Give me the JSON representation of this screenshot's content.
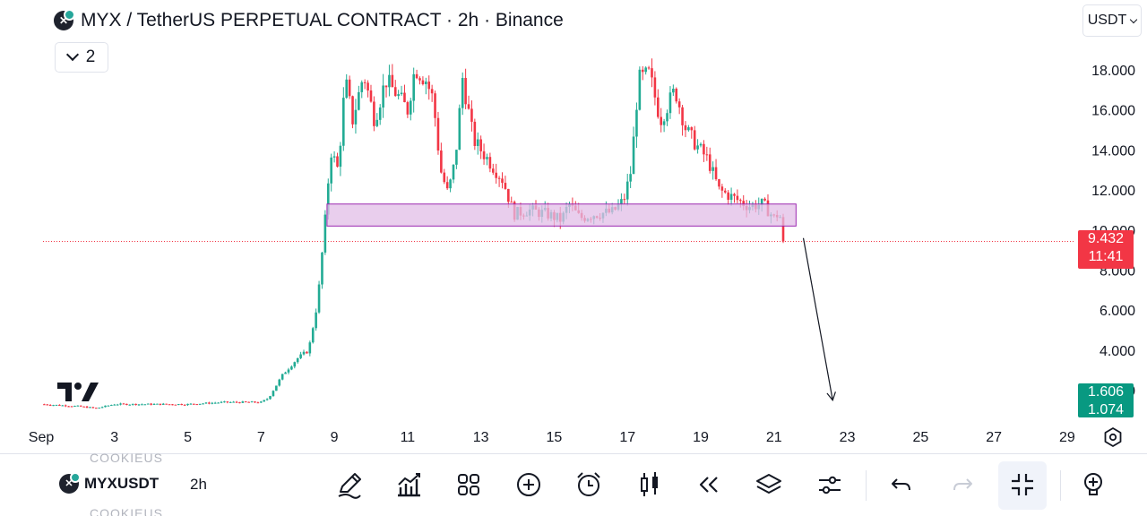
{
  "header": {
    "title": "MYX / TetherUS PERPETUAL CONTRACT · 2h · Binance",
    "collapse_count": "2",
    "currency": "USDT"
  },
  "price_badges": {
    "last_price": "9.432",
    "countdown": "11:41",
    "lower_price": "1.606",
    "lower_price_cut": "1.074"
  },
  "chart_data": {
    "type": "candlestick",
    "title": "MYX / TetherUS PERPETUAL CONTRACT · 2h · Binance",
    "x_tick_labels": [
      "Sep",
      "3",
      "5",
      "7",
      "9",
      "11",
      "13",
      "15",
      "17",
      "19",
      "21",
      "23",
      "25",
      "27",
      "29"
    ],
    "y_tick_labels": [
      "18.000",
      "16.000",
      "14.000",
      "12.000",
      "10.000",
      "8.000",
      "6.000",
      "4.000",
      "2.000"
    ],
    "ylim": [
      1.0,
      18.7
    ],
    "grid": false,
    "last_price": 9.432,
    "colors": {
      "up": "#22ab94",
      "down": "#f23645",
      "zone_fill": "#e1bee7",
      "zone_stroke": "#9c27b0"
    },
    "x_domain": [
      1.05,
      30.2
    ],
    "annotations": [
      {
        "kind": "support_zone",
        "x_start": 8.8,
        "x_end": 21.6,
        "y_low": 10.2,
        "y_high": 11.3
      },
      {
        "kind": "arrow",
        "x_start": 21.8,
        "y_start": 9.6,
        "x_end": 22.6,
        "y_end": 1.5
      }
    ],
    "price_path": [
      [
        1.0,
        1.3
      ],
      [
        2.0,
        1.2
      ],
      [
        2.5,
        1.1
      ],
      [
        3.0,
        1.3
      ],
      [
        4.0,
        1.3
      ],
      [
        5.0,
        1.3
      ],
      [
        6.0,
        1.4
      ],
      [
        7.0,
        1.4
      ],
      [
        7.2,
        1.6
      ],
      [
        7.6,
        2.8
      ],
      [
        8.0,
        3.6
      ],
      [
        8.3,
        4.0
      ],
      [
        8.55,
        6.5
      ],
      [
        8.75,
        10.5
      ],
      [
        8.9,
        14.0
      ],
      [
        9.1,
        13.0
      ],
      [
        9.3,
        17.5
      ],
      [
        9.5,
        15.5
      ],
      [
        9.8,
        17.8
      ],
      [
        10.1,
        15.5
      ],
      [
        10.4,
        17.5
      ],
      [
        10.7,
        16.8
      ],
      [
        11.0,
        16.0
      ],
      [
        11.2,
        18.1
      ],
      [
        11.5,
        17.5
      ],
      [
        11.7,
        16.5
      ],
      [
        11.9,
        13.0
      ],
      [
        12.1,
        11.8
      ],
      [
        12.3,
        13.5
      ],
      [
        12.5,
        17.6
      ],
      [
        12.8,
        14.5
      ],
      [
        13.2,
        13.5
      ],
      [
        13.6,
        12.5
      ],
      [
        13.9,
        10.8
      ],
      [
        14.3,
        11.0
      ],
      [
        14.8,
        10.8
      ],
      [
        15.2,
        10.5
      ],
      [
        15.4,
        11.3
      ],
      [
        15.7,
        10.6
      ],
      [
        16.1,
        10.8
      ],
      [
        16.6,
        10.9
      ],
      [
        16.9,
        11.5
      ],
      [
        17.1,
        13.0
      ],
      [
        17.3,
        17.5
      ],
      [
        17.6,
        17.8
      ],
      [
        17.9,
        15.5
      ],
      [
        18.3,
        17.0
      ],
      [
        18.6,
        15.0
      ],
      [
        18.9,
        14.2
      ],
      [
        19.2,
        13.5
      ],
      [
        19.5,
        12.0
      ],
      [
        19.9,
        11.6
      ],
      [
        20.3,
        11.2
      ],
      [
        20.7,
        11.3
      ],
      [
        21.0,
        10.6
      ],
      [
        21.15,
        10.9
      ],
      [
        21.25,
        9.43
      ]
    ]
  },
  "toolbar": {
    "symbol": "MYXUSDT",
    "interval": "2h",
    "ghost_text_top": "COOKIEUS",
    "ghost_text_bottom": "COOKIEUS"
  }
}
